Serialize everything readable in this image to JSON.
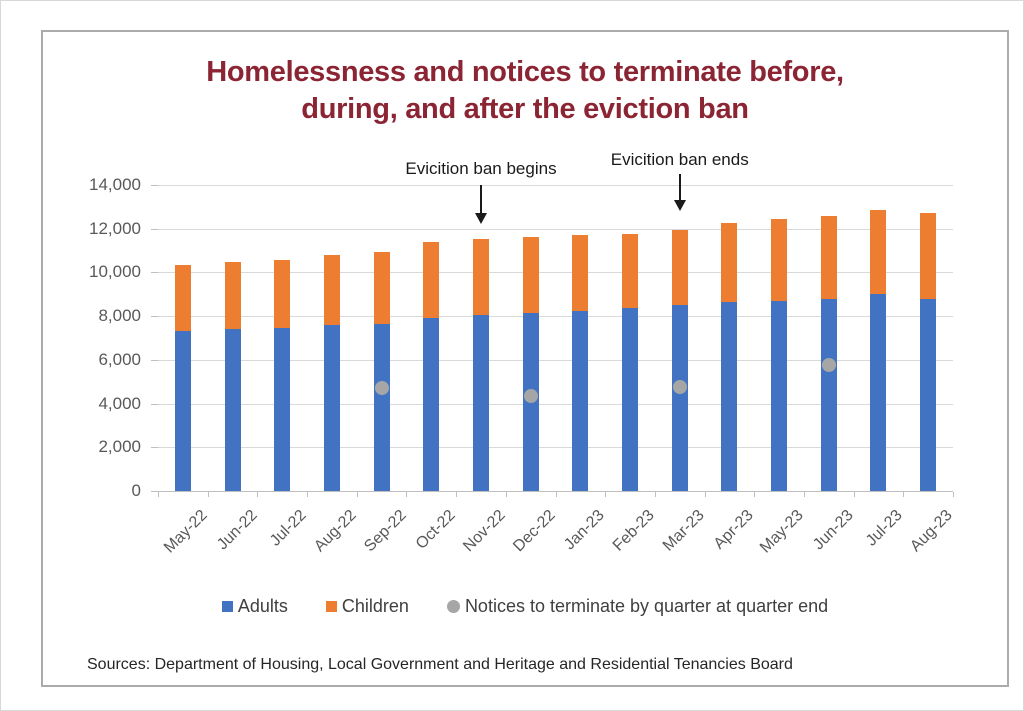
{
  "title": {
    "line1": "Homelessness and notices to terminate before,",
    "line2": "during, and after the eviction ban"
  },
  "annotations": [
    {
      "label": "Evicition ban begins",
      "target_month": "Nov-22"
    },
    {
      "label": "Evicition ban ends",
      "target_month": "Mar-23"
    }
  ],
  "legend": [
    {
      "label": "Adults",
      "shape": "square",
      "color": "#4173c2",
      "icon": "blue-square-marker"
    },
    {
      "label": "Children",
      "shape": "square",
      "color": "#ed7d31",
      "icon": "orange-square-marker"
    },
    {
      "label": "Notices to terminate by quarter at quarter end",
      "shape": "circle",
      "color": "#a6a6a6",
      "icon": "gray-circle-marker"
    }
  ],
  "sources": "Sources: Department of Housing, Local Government and Heritage and Residential Tenancies Board",
  "colors": {
    "adults": "#4173c2",
    "children": "#ed7d31",
    "notices": "#a6a6a6",
    "title": "#8b2433",
    "gridline": "#d9d9d9",
    "axis": "#bfbfbf",
    "tick_label": "#595959",
    "legend_text": "#404040",
    "annotation": "#1a1a1a",
    "frame_border": "#ababab"
  },
  "chart_data": {
    "type": "bar",
    "stacked": true,
    "title": "Homelessness and notices to terminate before, during, and after the eviction ban",
    "categories": [
      "May-22",
      "Jun-22",
      "Jul-22",
      "Aug-22",
      "Sep-22",
      "Oct-22",
      "Nov-22",
      "Dec-22",
      "Jan-23",
      "Feb-23",
      "Mar-23",
      "Apr-23",
      "May-23",
      "Jun-23",
      "Jul-23",
      "Aug-23"
    ],
    "series": [
      {
        "name": "Adults",
        "color": "#4173c2",
        "values": [
          7300,
          7400,
          7450,
          7600,
          7650,
          7900,
          8050,
          8150,
          8250,
          8350,
          8500,
          8650,
          8700,
          8800,
          9000,
          8800
        ]
      },
      {
        "name": "Children",
        "color": "#ed7d31",
        "values": [
          3025,
          3100,
          3100,
          3200,
          3300,
          3500,
          3500,
          3450,
          3450,
          3400,
          3450,
          3600,
          3750,
          3800,
          3850,
          3900
        ]
      }
    ],
    "scatter_series": {
      "name": "Notices to terminate by quarter at quarter end",
      "color": "#a6a6a6",
      "points": [
        {
          "category": "Sep-22",
          "value": 4700
        },
        {
          "category": "Dec-22",
          "value": 4350
        },
        {
          "category": "Mar-23",
          "value": 4750
        },
        {
          "category": "Jun-23",
          "value": 5750
        }
      ]
    },
    "xlabel": "",
    "ylabel": "",
    "ylim": [
      0,
      14000
    ],
    "y_ticks": [
      0,
      2000,
      4000,
      6000,
      8000,
      10000,
      12000,
      14000
    ],
    "grid": "horizontal",
    "legend_position": "bottom"
  }
}
